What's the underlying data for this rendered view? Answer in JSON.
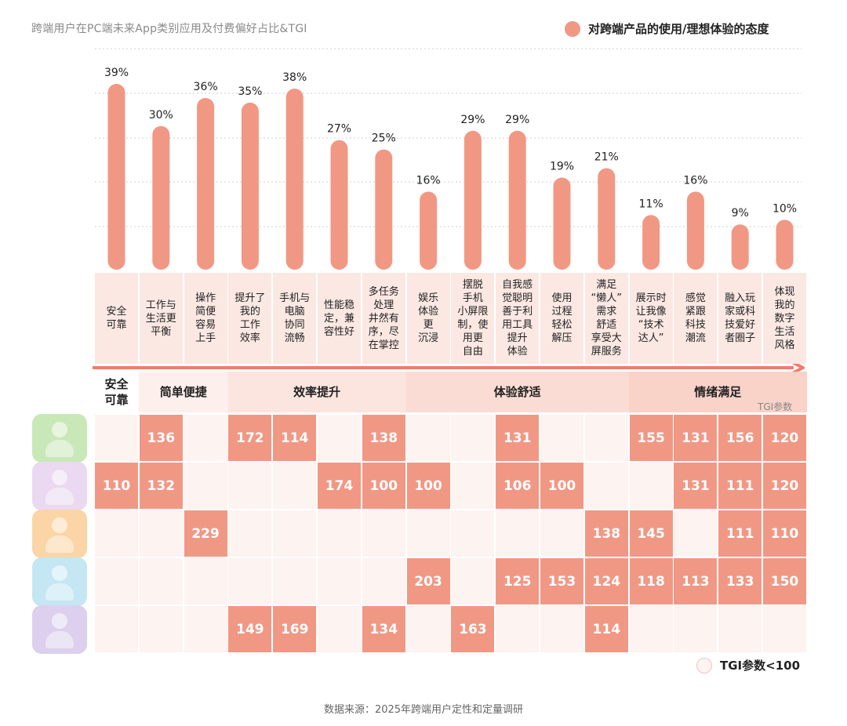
{
  "title": "跨端用户在PC端未来App类别应用及付费偏好占比&TGI",
  "legend_top": "对跨端产品的使用/理想体验的态度",
  "legend_bottom": "TGI参数<100",
  "tgi_label": "TGI参数",
  "source": "数据来源：2025年跨端用户定性和定量调研",
  "colors": {
    "bar": "#f19884",
    "cell": "#f19884",
    "empty": "#fdf3f0",
    "label_bg": "#fbe8e3",
    "arrow": "#ee7d6b"
  },
  "chart_data": {
    "type": "bar",
    "title": "跨端用户在PC端未来App类别应用及付费偏好占比&TGI",
    "unit": "%",
    "ylim": [
      0,
      45
    ],
    "categories": [
      "安全可靠",
      "工作与生活更平衡",
      "操作简便容易上手",
      "提升了我的工作效率",
      "手机与电脑协同流畅",
      "性能稳定，兼容性好",
      "多任务处理井然有序，尽在掌控",
      "娱乐体验更沉浸",
      "摆脱手机小屏限制，使用更自由",
      "自我感觉聪明善于利用工具提升体验",
      "使用过程轻松解压",
      "满足“懒人”需求舒适享受大屏服务",
      "展示时让我像“技术达人”",
      "感觉紧跟科技潮流",
      "融入玩家或科技爱好者圈子",
      "体现我的数字生活风格"
    ],
    "labels_wrapped": [
      "安全\n可靠",
      "工作与\n生活更\n平衡",
      "操作\n简便\n容易\n上手",
      "提升了\n我的\n工作\n效率",
      "手机与\n电脑\n协同\n流畅",
      "性能稳\n定，兼\n容性好",
      "多任务\n处理\n井然有\n序，尽\n在掌控",
      "娱乐\n体验\n更\n沉浸",
      "摆脱\n手机\n小屏限\n制，使\n用更\n自由",
      "自我感\n觉聪明\n善于利\n用工具\n提升\n体验",
      "使用\n过程\n轻松\n解压",
      "满足\n“懒人”\n需求\n舒适\n享受大\n屏服务",
      "展示时\n让我像\n“技术\n达人”",
      "感觉\n紧跟\n科技\n潮流",
      "融入玩\n家或科\n技爱好\n者圈子",
      "体现\n我的\n数字\n生活\n风格"
    ],
    "values": [
      39,
      30,
      36,
      35,
      38,
      27,
      25,
      16,
      29,
      29,
      19,
      21,
      11,
      16,
      9,
      10
    ],
    "value_labels": [
      "39%",
      "30%",
      "36%",
      "35%",
      "38%",
      "27%",
      "25%",
      "16%",
      "29%",
      "29%",
      "19%",
      "21%",
      "11%",
      "16%",
      "9%",
      "10%"
    ],
    "groups": [
      {
        "name": "安全\n可靠",
        "start": 0,
        "end": 0,
        "shade": "#ffffff"
      },
      {
        "name": "简单便捷",
        "start": 1,
        "end": 2,
        "shade": "#fdf0ec"
      },
      {
        "name": "效率提升",
        "start": 3,
        "end": 6,
        "shade": "#fce5df"
      },
      {
        "name": "体验舒适",
        "start": 7,
        "end": 11,
        "shade": "#fbdcd4"
      },
      {
        "name": "情绪满足",
        "start": 12,
        "end": 15,
        "shade": "#f9d2c8"
      }
    ],
    "tgi_rows": [
      [
        null,
        136,
        null,
        172,
        114,
        null,
        138,
        null,
        null,
        131,
        null,
        null,
        155,
        131,
        156,
        120
      ],
      [
        110,
        132,
        null,
        null,
        null,
        174,
        100,
        100,
        null,
        106,
        100,
        null,
        null,
        131,
        111,
        120
      ],
      [
        null,
        null,
        229,
        null,
        null,
        null,
        null,
        null,
        null,
        null,
        null,
        138,
        145,
        null,
        111,
        110
      ],
      [
        null,
        null,
        null,
        null,
        null,
        null,
        null,
        203,
        null,
        125,
        153,
        124,
        118,
        113,
        133,
        150
      ],
      [
        null,
        null,
        null,
        149,
        169,
        null,
        134,
        null,
        163,
        null,
        null,
        114,
        null,
        null,
        null,
        null
      ]
    ],
    "avatar_colors": [
      "#c9e8b8",
      "#ead9f0",
      "#fbd5a6",
      "#c5e6f3",
      "#dcd0ee"
    ]
  }
}
